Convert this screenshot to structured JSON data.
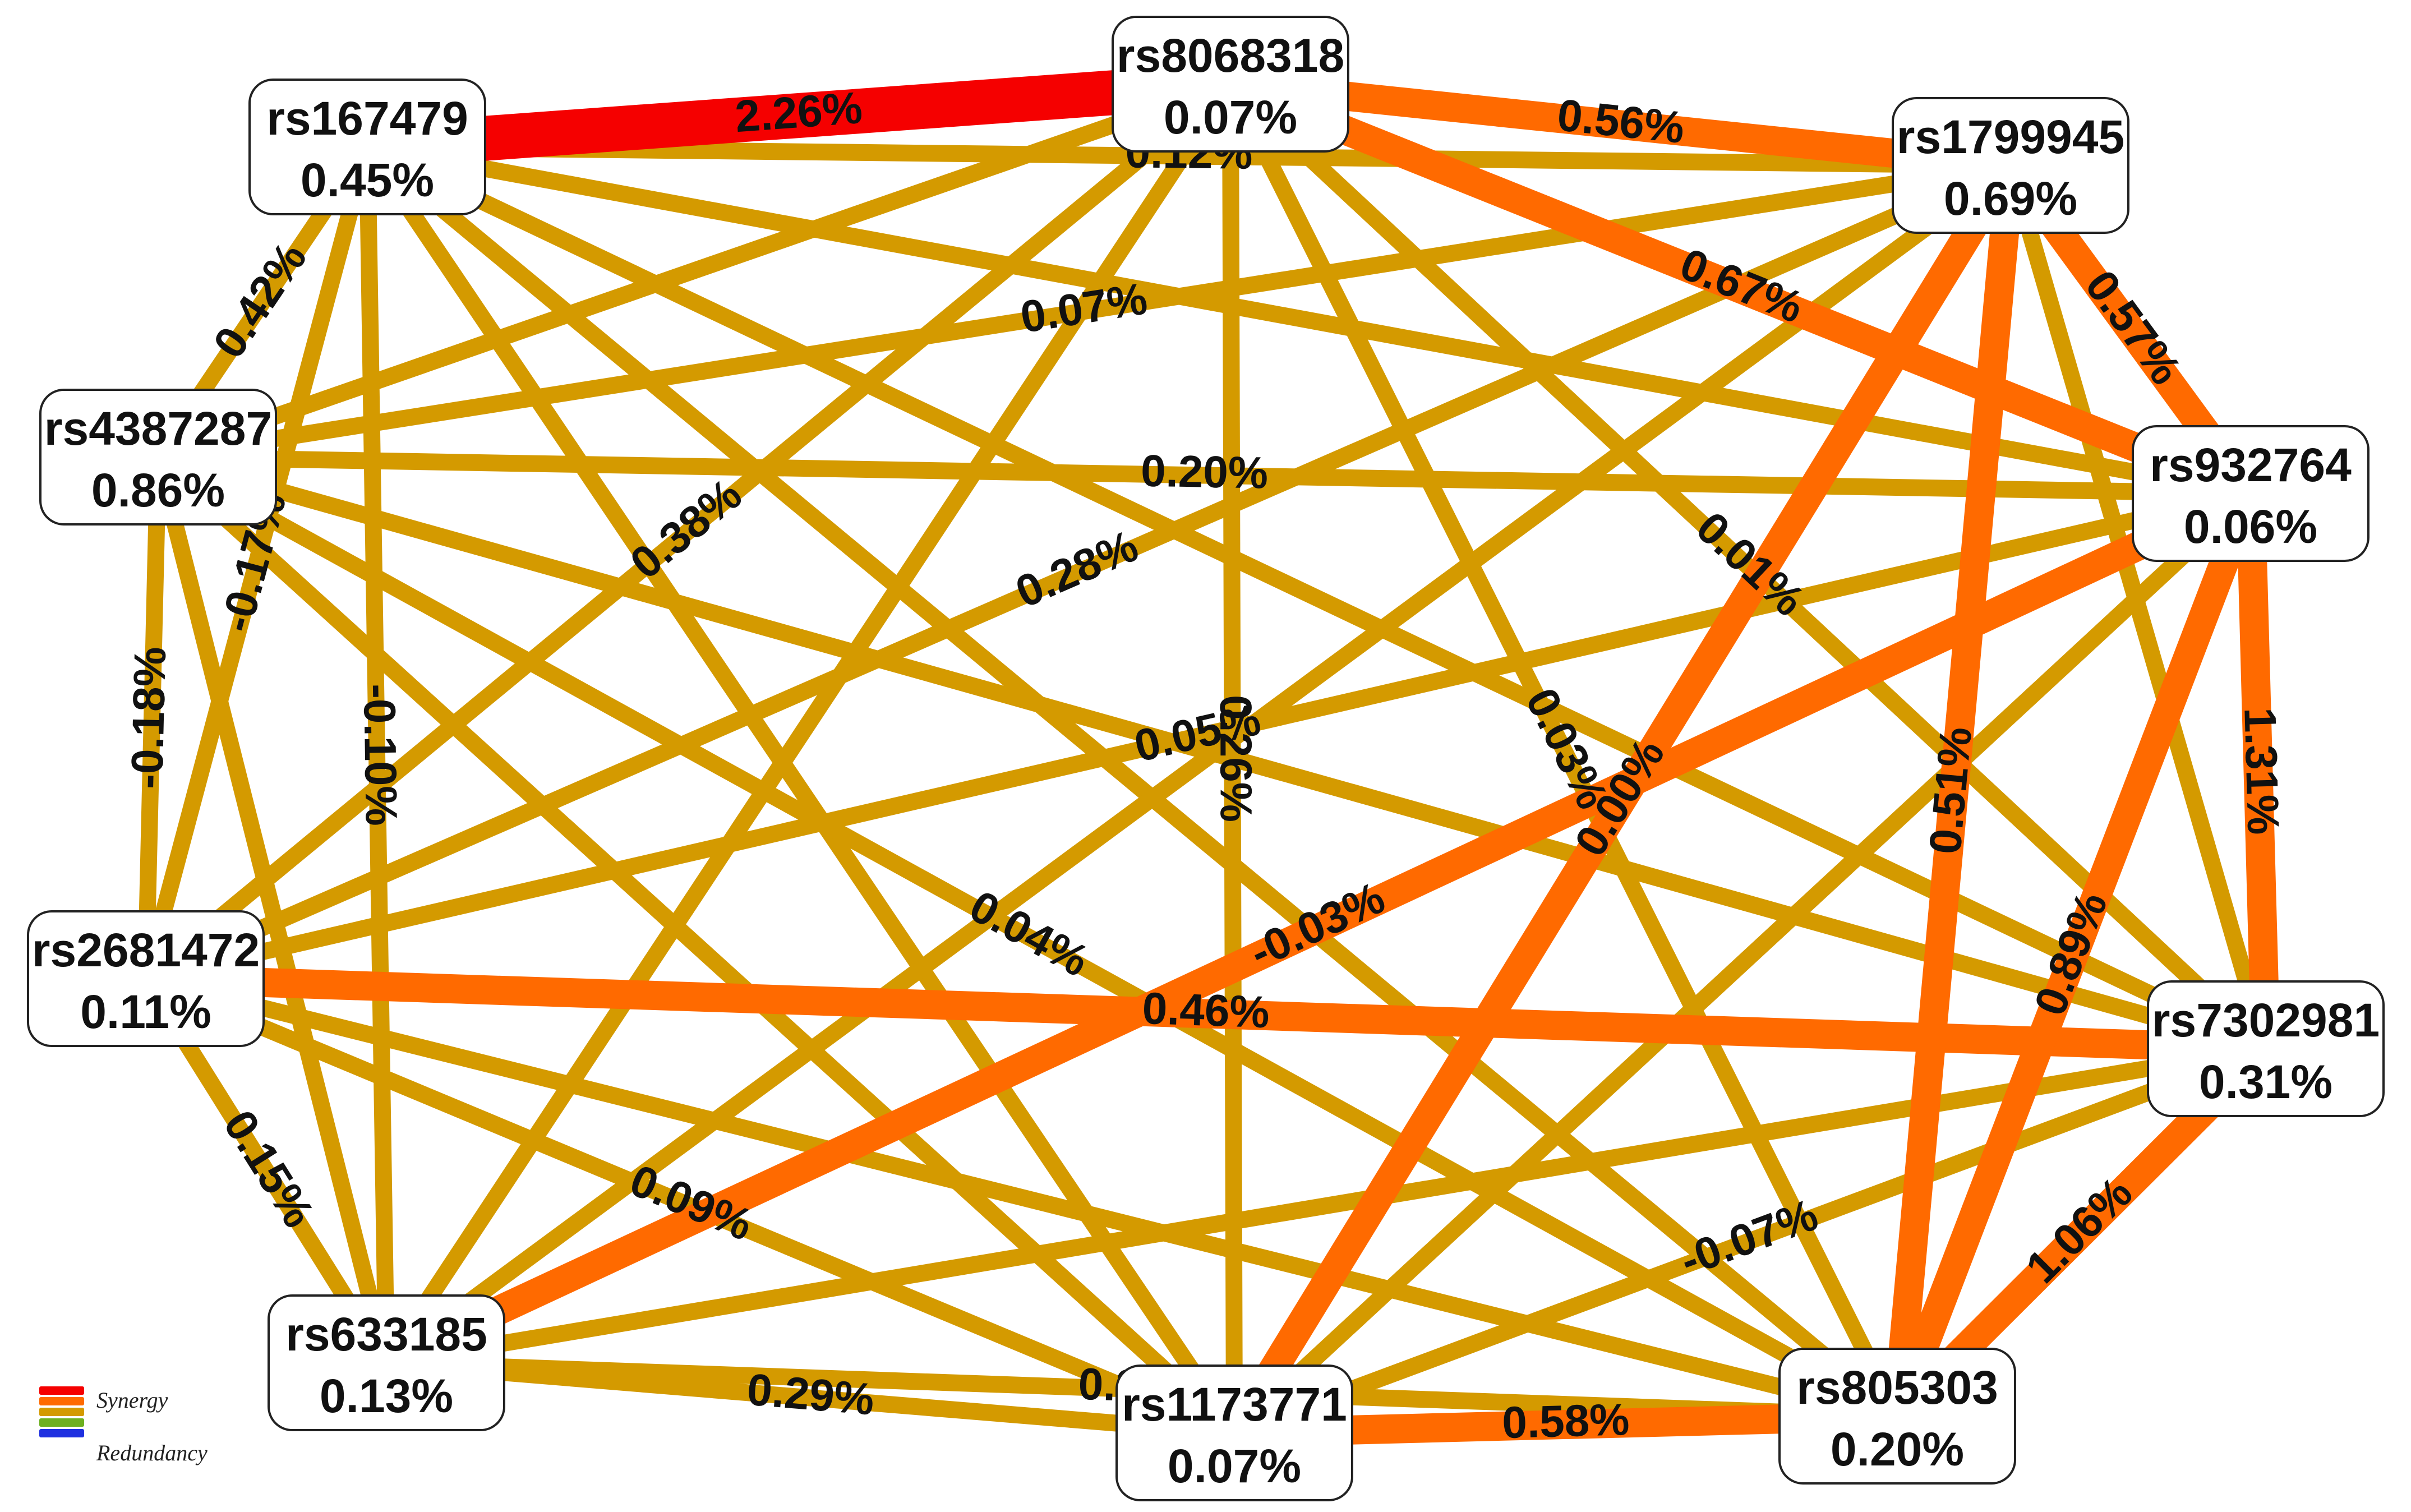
{
  "colors": {
    "synergy_strong": "#f50000",
    "synergy": "#ff6a00",
    "weak": "#d49a00",
    "neutral": "#6db020",
    "redundancy": "#1f30e0"
  },
  "legend": {
    "synergy_label": "Synergy",
    "redundancy_label": "Redundancy"
  },
  "nodes": [
    {
      "id": "rs8068318",
      "name": "rs8068318",
      "value": "0.07%"
    },
    {
      "id": "rs167479",
      "name": "rs167479",
      "value": "0.45%"
    },
    {
      "id": "rs1799945",
      "name": "rs1799945",
      "value": "0.69%"
    },
    {
      "id": "rs4387287",
      "name": "rs4387287",
      "value": "0.86%"
    },
    {
      "id": "rs932764",
      "name": "rs932764",
      "value": "0.06%"
    },
    {
      "id": "rs2681472",
      "name": "rs2681472",
      "value": "0.11%"
    },
    {
      "id": "rs7302981",
      "name": "rs7302981",
      "value": "0.31%"
    },
    {
      "id": "rs633185",
      "name": "rs633185",
      "value": "0.13%"
    },
    {
      "id": "rs1173771",
      "name": "rs1173771",
      "value": "0.07%"
    },
    {
      "id": "rs805303",
      "name": "rs805303",
      "value": "0.20%"
    }
  ],
  "edges": [
    {
      "source": "rs167479",
      "target": "rs8068318",
      "label": "2.26%",
      "strength": "strong"
    },
    {
      "source": "rs8068318",
      "target": "rs1799945",
      "label": "0.56%",
      "strength": "synergy"
    },
    {
      "source": "rs8068318",
      "target": "rs932764",
      "label": "0.67%",
      "strength": "synergy"
    },
    {
      "source": "rs1799945",
      "target": "rs932764",
      "label": "0.57%",
      "strength": "synergy"
    },
    {
      "source": "rs932764",
      "target": "rs7302981",
      "label": "1.31%",
      "strength": "synergy"
    },
    {
      "source": "rs2681472",
      "target": "rs7302981",
      "label": "0.46%",
      "strength": "synergy"
    },
    {
      "source": "rs7302981",
      "target": "rs805303",
      "label": "1.06%",
      "strength": "synergy"
    },
    {
      "source": "rs932764",
      "target": "rs805303",
      "label": "0.89%",
      "strength": "synergy"
    },
    {
      "source": "rs932764",
      "target": "rs633185",
      "label": "-0.03%",
      "strength": "synergy"
    },
    {
      "source": "rs1799945",
      "target": "rs1173771",
      "label": "0.00%",
      "strength": "synergy"
    },
    {
      "source": "rs1799945",
      "target": "rs805303",
      "label": "0.51%",
      "strength": "synergy"
    },
    {
      "source": "rs1173771",
      "target": "rs805303",
      "label": "0.58%",
      "strength": "synergy"
    },
    {
      "source": "rs167479",
      "target": "rs1799945",
      "label": "0.12%",
      "strength": "weak"
    },
    {
      "source": "rs167479",
      "target": "rs932764",
      "label": "",
      "strength": "weak"
    },
    {
      "source": "rs167479",
      "target": "rs4387287",
      "label": "0.42%",
      "strength": "weak"
    },
    {
      "source": "rs167479",
      "target": "rs2681472",
      "label": "-0.17%",
      "strength": "weak"
    },
    {
      "source": "rs167479",
      "target": "rs633185",
      "label": "-0.10%",
      "strength": "weak"
    },
    {
      "source": "rs167479",
      "target": "rs7302981",
      "label": "",
      "strength": "weak"
    },
    {
      "source": "rs167479",
      "target": "rs1173771",
      "label": "",
      "strength": "weak"
    },
    {
      "source": "rs167479",
      "target": "rs805303",
      "label": "",
      "strength": "weak"
    },
    {
      "source": "rs8068318",
      "target": "rs4387287",
      "label": "",
      "strength": "weak"
    },
    {
      "source": "rs8068318",
      "target": "rs2681472",
      "label": "0.38%",
      "strength": "weak"
    },
    {
      "source": "rs8068318",
      "target": "rs633185",
      "label": "",
      "strength": "weak"
    },
    {
      "source": "rs8068318",
      "target": "rs1173771",
      "label": "0.26%",
      "strength": "weak"
    },
    {
      "source": "rs8068318",
      "target": "rs805303",
      "label": "0.03%",
      "strength": "weak"
    },
    {
      "source": "rs8068318",
      "target": "rs7302981",
      "label": "0.01%",
      "strength": "weak"
    },
    {
      "source": "rs1799945",
      "target": "rs4387287",
      "label": "0.07%",
      "strength": "weak"
    },
    {
      "source": "rs1799945",
      "target": "rs2681472",
      "label": "0.28%",
      "strength": "weak"
    },
    {
      "source": "rs1799945",
      "target": "rs633185",
      "label": "",
      "strength": "weak"
    },
    {
      "source": "rs1799945",
      "target": "rs7302981",
      "label": "",
      "strength": "weak"
    },
    {
      "source": "rs4387287",
      "target": "rs932764",
      "label": "0.20%",
      "strength": "weak"
    },
    {
      "source": "rs4387287",
      "target": "rs2681472",
      "label": "-0.18%",
      "strength": "weak"
    },
    {
      "source": "rs4387287",
      "target": "rs633185",
      "label": "",
      "strength": "weak"
    },
    {
      "source": "rs4387287",
      "target": "rs1173771",
      "label": "",
      "strength": "weak"
    },
    {
      "source": "rs4387287",
      "target": "rs805303",
      "label": "0.04%",
      "strength": "weak"
    },
    {
      "source": "rs4387287",
      "target": "rs7302981",
      "label": "",
      "strength": "weak"
    },
    {
      "source": "rs932764",
      "target": "rs2681472",
      "label": "0.05%",
      "strength": "weak"
    },
    {
      "source": "rs932764",
      "target": "rs1173771",
      "label": "",
      "strength": "weak"
    },
    {
      "source": "rs2681472",
      "target": "rs633185",
      "label": "0.15%",
      "strength": "weak"
    },
    {
      "source": "rs2681472",
      "target": "rs1173771",
      "label": "0.09%",
      "strength": "weak"
    },
    {
      "source": "rs2681472",
      "target": "rs805303",
      "label": "",
      "strength": "weak"
    },
    {
      "source": "rs633185",
      "target": "rs1173771",
      "label": "0.29%",
      "strength": "weak"
    },
    {
      "source": "rs633185",
      "target": "rs805303",
      "label": "0.38%",
      "strength": "weak"
    },
    {
      "source": "rs633185",
      "target": "rs7302981",
      "label": "",
      "strength": "weak"
    },
    {
      "source": "rs1173771",
      "target": "rs7302981",
      "label": "-0.07%",
      "strength": "weak"
    }
  ]
}
